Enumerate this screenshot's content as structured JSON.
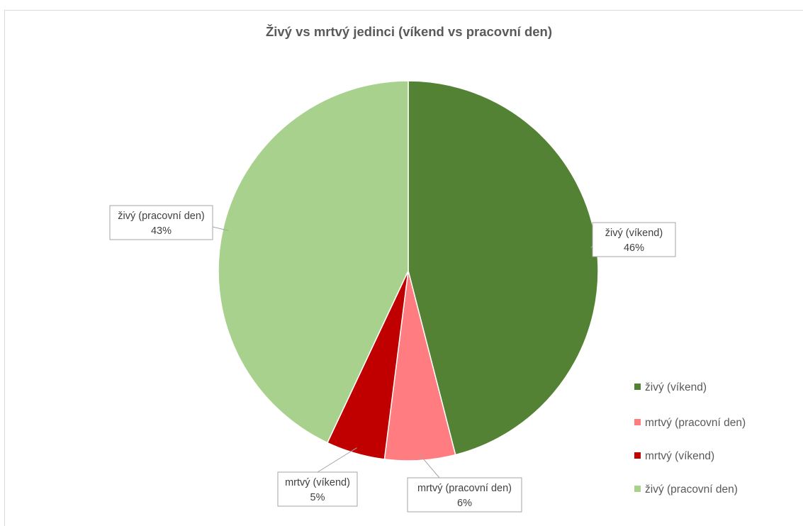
{
  "chart_data": {
    "type": "pie",
    "title": "Živý vs mrtvý jedinci (víkend vs pracovní den)",
    "start_angle_deg": 0,
    "direction": "clockwise",
    "slices": [
      {
        "label": "živý (víkend)",
        "value": 46,
        "value_label": "46%",
        "color": "#548235"
      },
      {
        "label": "mrtvý (pracovní den)",
        "value": 6,
        "value_label": "6%",
        "color": "#ff7c80"
      },
      {
        "label": "mrtvý (víkend)",
        "value": 5,
        "value_label": "5%",
        "color": "#c00000"
      },
      {
        "label": "živý (pracovní den)",
        "value": 43,
        "value_label": "43%",
        "color": "#a9d18e"
      }
    ],
    "legend": {
      "position": "right-bottom",
      "entries": [
        "živý (víkend)",
        "mrtvý (pracovní den)",
        "mrtvý (víkend)",
        "živý (pracovní den)"
      ]
    }
  }
}
